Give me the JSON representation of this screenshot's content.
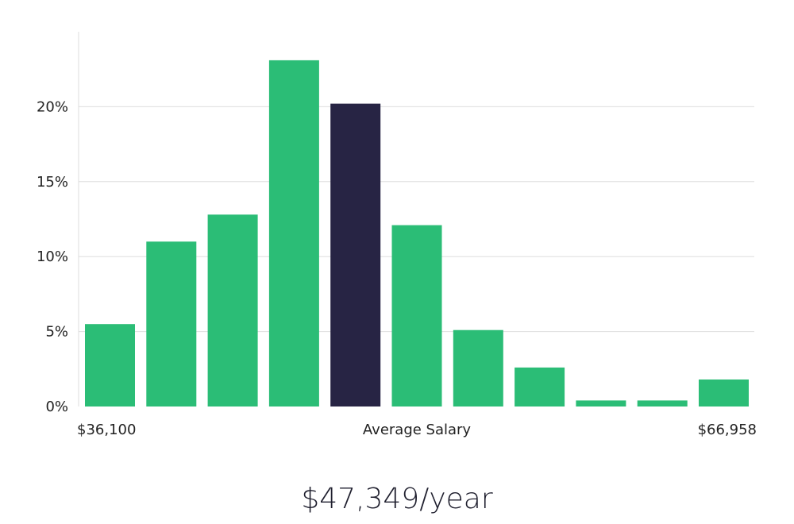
{
  "chart_data": {
    "type": "bar",
    "title": "",
    "xlabel": "Average Salary",
    "ylabel": "",
    "x_min_label": "$36,100",
    "x_max_label": "$66,958",
    "ylim": [
      0,
      0.25
    ],
    "yticks": [
      {
        "value": 0,
        "label": "0%"
      },
      {
        "value": 0.05,
        "label": "5%"
      },
      {
        "value": 0.1,
        "label": "10%"
      },
      {
        "value": 0.15,
        "label": "15%"
      },
      {
        "value": 0.2,
        "label": "20%"
      }
    ],
    "values": [
      0.055,
      0.11,
      0.128,
      0.231,
      0.202,
      0.121,
      0.051,
      0.026,
      0.004,
      0.004,
      0.018
    ],
    "highlight_index": 4,
    "grid": true,
    "colors": {
      "bar": "#2bbd76",
      "highlight": "#272444",
      "grid": "#dedede",
      "axis": "#dcdcdc"
    }
  },
  "average_salary": "$47,349/year"
}
